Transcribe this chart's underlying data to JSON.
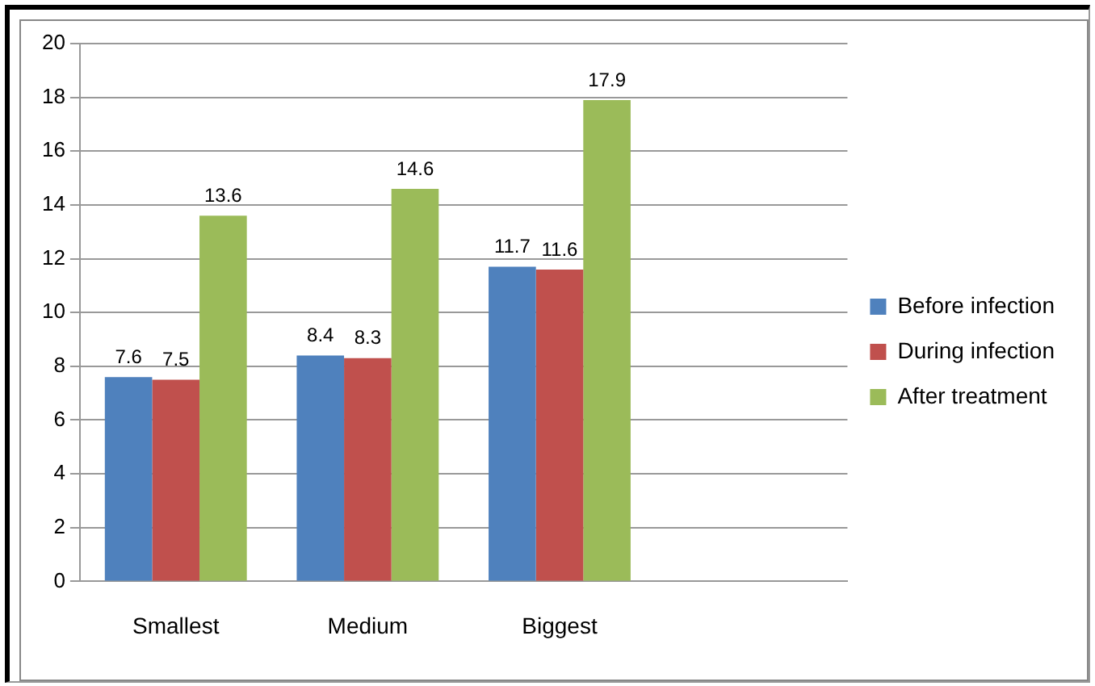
{
  "chart_data": {
    "type": "bar",
    "categories": [
      "Smallest",
      "Medium",
      "Biggest",
      null
    ],
    "series": [
      {
        "name": "Before infection",
        "color": "#4f81bd",
        "values": [
          7.6,
          8.4,
          11.7,
          null
        ]
      },
      {
        "name": "During infection",
        "color": "#c0504d",
        "values": [
          7.5,
          8.3,
          11.6,
          null
        ]
      },
      {
        "name": "After treatment",
        "color": "#9bbb59",
        "values": [
          13.6,
          14.6,
          17.9,
          null
        ]
      }
    ],
    "ylim": [
      0,
      20
    ],
    "yticks": [
      0,
      2,
      4,
      6,
      8,
      10,
      12,
      14,
      16,
      18,
      20
    ],
    "grid": "y",
    "legend": "right",
    "data_labels": true
  }
}
